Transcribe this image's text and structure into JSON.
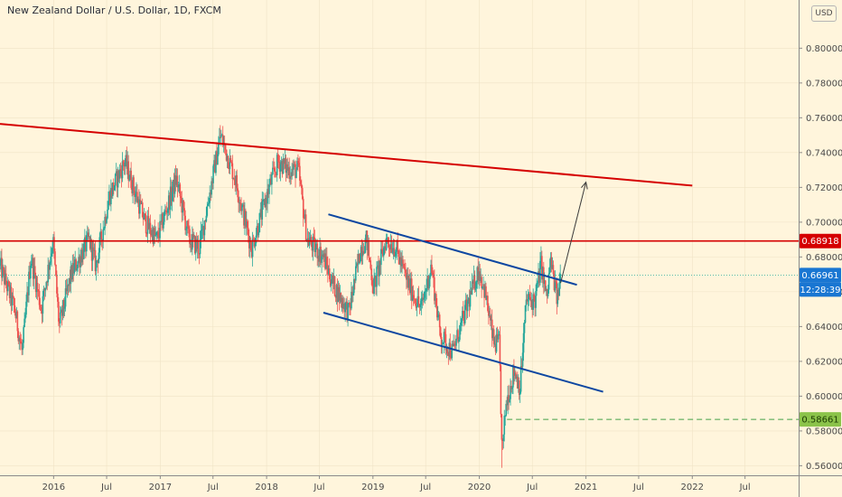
{
  "title": "New Zealand Dollar / U.S. Dollar, 1D, FXCM",
  "currency_button": "USD",
  "colors": {
    "background": "#fff5dc",
    "up": "#26a69a",
    "down": "#ef5350",
    "resistance": "#d50000",
    "channel": "#0d47a1",
    "projection": "#3a3a3a",
    "current_line": "#26a69a",
    "low_line": "#43a047",
    "axis_text": "#4a4a4a",
    "current_tag": "#1976d2",
    "resistance_tag": "#d50000",
    "low_tag": "#8bc34a"
  },
  "chart_data": {
    "type": "candlestick",
    "symbol": "NZDUSD",
    "timeframe": "1D",
    "source": "FXCM",
    "ylim": [
      0.5545,
      0.8277
    ],
    "xlim": [
      "2015-07-01",
      "2023-01-01"
    ],
    "y_ticks": [
      0.8,
      0.78,
      0.76,
      0.74,
      0.72,
      0.7,
      0.68,
      0.66,
      0.64,
      0.62,
      0.6,
      0.58,
      0.56
    ],
    "x_ticks": [
      {
        "label": "2016",
        "date": "2016-01-01"
      },
      {
        "label": "Jul",
        "date": "2016-07-01"
      },
      {
        "label": "2017",
        "date": "2017-01-01"
      },
      {
        "label": "Jul",
        "date": "2017-07-01"
      },
      {
        "label": "2018",
        "date": "2018-01-01"
      },
      {
        "label": "Jul",
        "date": "2018-07-01"
      },
      {
        "label": "2019",
        "date": "2019-01-01"
      },
      {
        "label": "Jul",
        "date": "2019-07-01"
      },
      {
        "label": "2020",
        "date": "2020-01-01"
      },
      {
        "label": "Jul",
        "date": "2020-07-01"
      },
      {
        "label": "2021",
        "date": "2021-01-01"
      },
      {
        "label": "Jul",
        "date": "2021-07-01"
      },
      {
        "label": "2022",
        "date": "2022-01-01"
      },
      {
        "label": "Jul",
        "date": "2022-07-01"
      }
    ],
    "price_path": [
      [
        "2015-07-01",
        0.675
      ],
      [
        "2015-08-20",
        0.65
      ],
      [
        "2015-09-15",
        0.625
      ],
      [
        "2015-10-15",
        0.68
      ],
      [
        "2015-11-20",
        0.65
      ],
      [
        "2015-12-30",
        0.69
      ],
      [
        "2016-01-20",
        0.64
      ],
      [
        "2016-03-01",
        0.67
      ],
      [
        "2016-05-01",
        0.69
      ],
      [
        "2016-05-25",
        0.675
      ],
      [
        "2016-07-10",
        0.715
      ],
      [
        "2016-09-01",
        0.735
      ],
      [
        "2016-11-10",
        0.7
      ],
      [
        "2016-12-20",
        0.69
      ],
      [
        "2017-02-25",
        0.725
      ],
      [
        "2017-04-10",
        0.69
      ],
      [
        "2017-05-15",
        0.685
      ],
      [
        "2017-07-27",
        0.75
      ],
      [
        "2017-09-15",
        0.725
      ],
      [
        "2017-11-10",
        0.685
      ],
      [
        "2018-01-10",
        0.72
      ],
      [
        "2018-02-10",
        0.735
      ],
      [
        "2018-03-20",
        0.73
      ],
      [
        "2018-04-20",
        0.73
      ],
      [
        "2018-05-20",
        0.69
      ],
      [
        "2018-07-15",
        0.68
      ],
      [
        "2018-08-15",
        0.665
      ],
      [
        "2018-10-10",
        0.648
      ],
      [
        "2018-11-20",
        0.685
      ],
      [
        "2018-12-10",
        0.69
      ],
      [
        "2019-01-03",
        0.662
      ],
      [
        "2019-02-15",
        0.69
      ],
      [
        "2019-03-20",
        0.685
      ],
      [
        "2019-05-01",
        0.665
      ],
      [
        "2019-06-15",
        0.65
      ],
      [
        "2019-07-20",
        0.675
      ],
      [
        "2019-08-20",
        0.635
      ],
      [
        "2019-10-01",
        0.625
      ],
      [
        "2019-12-30",
        0.673
      ],
      [
        "2020-01-20",
        0.66
      ],
      [
        "2020-02-20",
        0.63
      ],
      [
        "2020-03-10",
        0.63
      ],
      [
        "2020-03-19",
        0.565
      ],
      [
        "2020-04-01",
        0.595
      ],
      [
        "2020-04-30",
        0.615
      ],
      [
        "2020-05-20",
        0.605
      ],
      [
        "2020-06-10",
        0.655
      ],
      [
        "2020-07-10",
        0.655
      ],
      [
        "2020-07-31",
        0.676
      ],
      [
        "2020-08-20",
        0.655
      ],
      [
        "2020-09-01",
        0.678
      ],
      [
        "2020-09-25",
        0.655
      ],
      [
        "2020-10-06",
        0.67
      ]
    ],
    "candle_ranges": [
      {
        "date": "2017-07-27",
        "high": 0.7558
      },
      {
        "date": "2020-03-19",
        "low": 0.5588
      },
      {
        "date": "2020-08-31",
        "high": 0.679
      }
    ],
    "trendlines": [
      {
        "name": "long-term resistance",
        "color": "#d50000",
        "points": [
          [
            "2015-07-01",
            0.7565
          ],
          [
            "2022-01-01",
            0.721
          ]
        ]
      },
      {
        "name": "channel-upper",
        "color": "#0d47a1",
        "points": [
          [
            "2018-08-01",
            0.7045
          ],
          [
            "2020-12-01",
            0.664
          ]
        ]
      },
      {
        "name": "channel-lower",
        "color": "#0d47a1",
        "points": [
          [
            "2018-07-15",
            0.648
          ],
          [
            "2021-03-01",
            0.6025
          ]
        ]
      },
      {
        "name": "projection-arrow",
        "color": "#3a3a3a",
        "points": [
          [
            "2020-10-06",
            0.665
          ],
          [
            "2021-01-01",
            0.723
          ]
        ]
      }
    ],
    "horizontal_lines": [
      {
        "name": "resistance",
        "price": 0.68918,
        "label": "0.68918",
        "style": "solid"
      },
      {
        "name": "current-price",
        "price": 0.66961,
        "label": "0.66961",
        "style": "dotted"
      },
      {
        "name": "swing-low",
        "price": 0.58661,
        "label": "0.58661",
        "style": "dashed",
        "start": "2020-04-05"
      }
    ],
    "countdown_label": "12:28:39"
  }
}
